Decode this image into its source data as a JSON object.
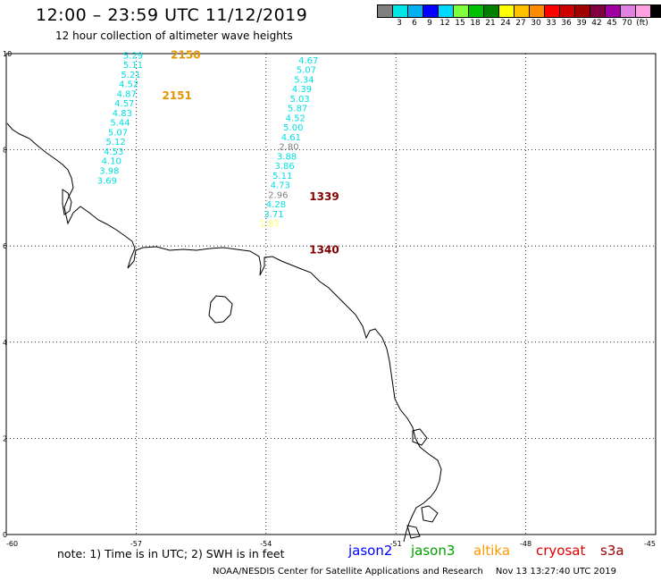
{
  "header": {
    "title": "12:00 – 23:59 UTC 11/12/2019",
    "subtitle": "12 hour collection of altimeter wave heights"
  },
  "scale": {
    "colors": [
      "#808080",
      "#00e5e5",
      "#00b0f0",
      "#0000ff",
      "#00d8ff",
      "#80ff40",
      "#00c000",
      "#008000",
      "#ffff00",
      "#ffc000",
      "#ff8c00",
      "#ff0000",
      "#d00000",
      "#a00000",
      "#800040",
      "#a000a0",
      "#e080e0",
      "#ffa0e0",
      "#000000"
    ],
    "labels": [
      "3",
      "6",
      "9",
      "12",
      "15",
      "18",
      "21",
      "24",
      "27",
      "30",
      "33",
      "36",
      "39",
      "42",
      "45",
      "70",
      "(ft)"
    ]
  },
  "map": {
    "lon_ticks": [
      "-60",
      "-57",
      "-54",
      "-51",
      "-48",
      "-45"
    ],
    "lat_ticks": [
      "0",
      "2",
      "4",
      "6",
      "8",
      "10"
    ],
    "colors": {
      "cyan": "#00e0e0",
      "orange": "#e59400",
      "darkred": "#800000",
      "gray": "#808080",
      "yellow": "#ffff60"
    },
    "track_labels": [
      {
        "text": "2150",
        "lon": -56.2,
        "lat": 9.9,
        "color": "orange"
      },
      {
        "text": "2151",
        "lon": -56.4,
        "lat": 9.05,
        "color": "orange"
      },
      {
        "text": "1339",
        "lon": -53.0,
        "lat": 6.95,
        "color": "darkred"
      },
      {
        "text": "1340",
        "lon": -53.0,
        "lat": 5.85,
        "color": "darkred"
      }
    ],
    "passes": [
      {
        "name": "pass-2150",
        "points": [
          {
            "v": "5.29",
            "lon": -57.3,
            "lat": 9.9
          },
          {
            "v": "5.11",
            "lon": -57.3,
            "lat": 9.7
          },
          {
            "v": "5.21",
            "lon": -57.35,
            "lat": 9.5
          },
          {
            "v": "4.52",
            "lon": -57.4,
            "lat": 9.3
          },
          {
            "v": "4.87",
            "lon": -57.45,
            "lat": 9.1
          },
          {
            "v": "4.57",
            "lon": -57.5,
            "lat": 8.9
          },
          {
            "v": "4.83",
            "lon": -57.55,
            "lat": 8.7
          },
          {
            "v": "5.44",
            "lon": -57.6,
            "lat": 8.5
          },
          {
            "v": "5.07",
            "lon": -57.65,
            "lat": 8.3
          },
          {
            "v": "5.12",
            "lon": -57.7,
            "lat": 8.1
          },
          {
            "v": "4.53",
            "lon": -57.75,
            "lat": 7.9
          },
          {
            "v": "4.10",
            "lon": -57.8,
            "lat": 7.7
          },
          {
            "v": "3.98",
            "lon": -57.85,
            "lat": 7.5
          },
          {
            "v": "3.69",
            "lon": -57.9,
            "lat": 7.3
          }
        ]
      },
      {
        "name": "pass-1339",
        "points": [
          {
            "v": "4.67",
            "lon": -53.25,
            "lat": 9.8,
            "c": "cyan"
          },
          {
            "v": "5.07",
            "lon": -53.3,
            "lat": 9.6,
            "c": "cyan"
          },
          {
            "v": "5.34",
            "lon": -53.35,
            "lat": 9.4,
            "c": "cyan"
          },
          {
            "v": "4.39",
            "lon": -53.4,
            "lat": 9.2,
            "c": "cyan"
          },
          {
            "v": "5.03",
            "lon": -53.45,
            "lat": 9.0,
            "c": "cyan"
          },
          {
            "v": "5.87",
            "lon": -53.5,
            "lat": 8.8,
            "c": "cyan"
          },
          {
            "v": "4.52",
            "lon": -53.55,
            "lat": 8.6,
            "c": "cyan"
          },
          {
            "v": "5.00",
            "lon": -53.6,
            "lat": 8.4,
            "c": "cyan"
          },
          {
            "v": "4.61",
            "lon": -53.65,
            "lat": 8.2,
            "c": "cyan"
          },
          {
            "v": "2.80",
            "lon": -53.7,
            "lat": 8.0,
            "c": "gray"
          },
          {
            "v": "3.88",
            "lon": -53.75,
            "lat": 7.8,
            "c": "cyan"
          },
          {
            "v": "3.86",
            "lon": -53.8,
            "lat": 7.6,
            "c": "cyan"
          },
          {
            "v": "5.11",
            "lon": -53.85,
            "lat": 7.4,
            "c": "cyan"
          },
          {
            "v": "4.73",
            "lon": -53.9,
            "lat": 7.2,
            "c": "cyan"
          },
          {
            "v": "2.96",
            "lon": -53.95,
            "lat": 7.0,
            "c": "gray"
          },
          {
            "v": "4.28",
            "lon": -54.0,
            "lat": 6.8,
            "c": "cyan"
          },
          {
            "v": "3.71",
            "lon": -54.05,
            "lat": 6.6,
            "c": "cyan"
          },
          {
            "v": "1.83",
            "lon": -54.15,
            "lat": 6.4,
            "c": "yellow"
          }
        ]
      }
    ]
  },
  "footer": {
    "note": "note: 1) Time is in UTC; 2) SWH is in feet",
    "legend": [
      {
        "label": "jason2",
        "color": "#0000ff"
      },
      {
        "label": "jason3",
        "color": "#00a000"
      },
      {
        "label": "altika",
        "color": "#ff9900"
      },
      {
        "label": "cryosat",
        "color": "#e00000"
      },
      {
        "label": "s3a",
        "color": "#a00000"
      }
    ],
    "credit": "NOAA/NESDIS Center for Satellite Applications and Research",
    "timestamp": "Nov 13 13:27:40 UTC 2019"
  }
}
